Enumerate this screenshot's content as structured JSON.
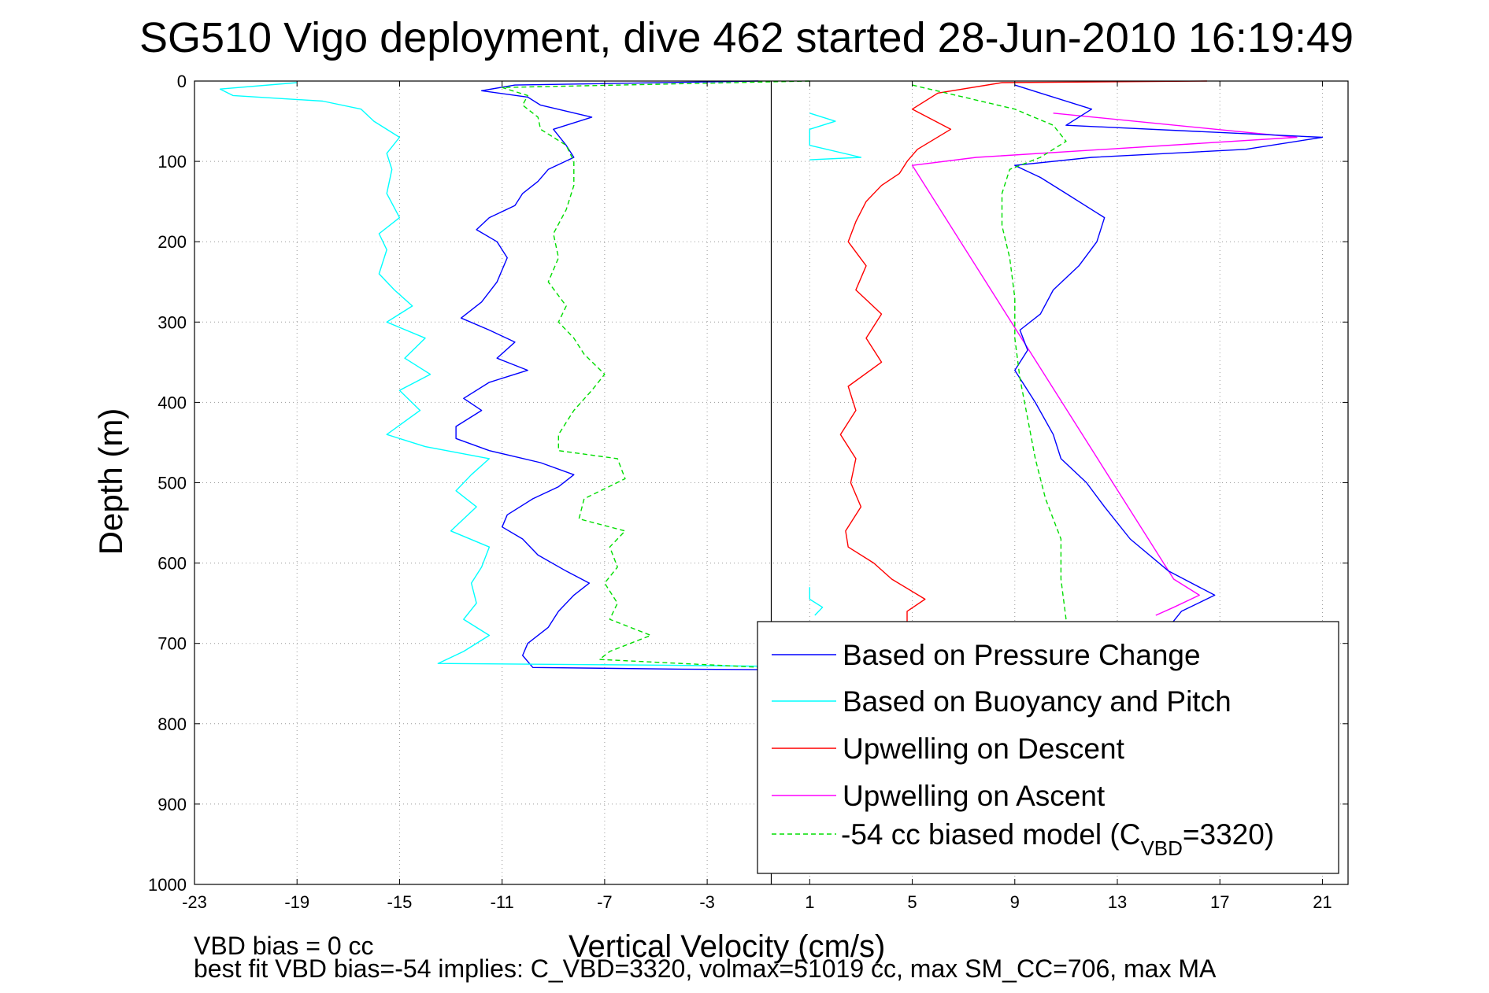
{
  "chart_data": {
    "type": "line",
    "title": "SG510 Vigo deployment, dive 462 started 28-Jun-2010 16:19:49",
    "xlabel": "Vertical Velocity (cm/s)",
    "ylabel": "Depth (m)",
    "xlim": [
      -23,
      22
    ],
    "ylim": [
      1000,
      0
    ],
    "x_ticks": [
      "-23",
      "-19",
      "-15",
      "-11",
      "-7",
      "-3",
      "1",
      "5",
      "9",
      "13",
      "17",
      "21"
    ],
    "y_ticks": [
      "0",
      "100",
      "200",
      "300",
      "400",
      "500",
      "600",
      "700",
      "800",
      "900",
      "1000"
    ],
    "grid": true,
    "legend_position": "bottom-right",
    "legend_model_text": "-54 cc biased model (C",
    "legend_model_sub": "VBD",
    "legend_model_tail": "=3320)",
    "series": [
      {
        "name": "Based on Pressure Change",
        "color": "#0000ff",
        "dash": "solid",
        "points": [
          [
            -1,
            0
          ],
          [
            -10.5,
            5
          ],
          [
            -11.8,
            12
          ],
          [
            -10,
            20
          ],
          [
            -9.5,
            30
          ],
          [
            -7.5,
            45
          ],
          [
            -9,
            60
          ],
          [
            -8.5,
            80
          ],
          [
            -8.2,
            95
          ],
          [
            -9.2,
            110
          ],
          [
            -9.6,
            125
          ],
          [
            -10.2,
            140
          ],
          [
            -10.5,
            155
          ],
          [
            -11.5,
            170
          ],
          [
            -12,
            185
          ],
          [
            -11.2,
            200
          ],
          [
            -10.8,
            220
          ],
          [
            -11.2,
            250
          ],
          [
            -11.8,
            275
          ],
          [
            -12.6,
            295
          ],
          [
            -11.5,
            310
          ],
          [
            -10.5,
            325
          ],
          [
            -11.2,
            345
          ],
          [
            -10,
            360
          ],
          [
            -11.5,
            375
          ],
          [
            -12.5,
            395
          ],
          [
            -11.8,
            410
          ],
          [
            -12.8,
            430
          ],
          [
            -12.8,
            445
          ],
          [
            -11.5,
            460
          ],
          [
            -9.5,
            475
          ],
          [
            -8.2,
            490
          ],
          [
            -8.8,
            505
          ],
          [
            -9.8,
            520
          ],
          [
            -10.8,
            540
          ],
          [
            -11,
            555
          ],
          [
            -10.2,
            570
          ],
          [
            -9.6,
            590
          ],
          [
            -8.5,
            610
          ],
          [
            -7.6,
            625
          ],
          [
            -8.2,
            640
          ],
          [
            -8.8,
            660
          ],
          [
            -9.2,
            680
          ],
          [
            -10,
            700
          ],
          [
            -10.2,
            715
          ],
          [
            -9.8,
            730
          ],
          [
            -4,
            732
          ],
          [
            1,
            733
          ]
        ]
      },
      {
        "name": "Based on Buoyancy and Pitch",
        "color": "#00ffff",
        "dash": "solid",
        "points": [
          [
            -19,
            2
          ],
          [
            -22,
            10
          ],
          [
            -21.5,
            18
          ],
          [
            -18,
            25
          ],
          [
            -16.5,
            35
          ],
          [
            -16,
            50
          ],
          [
            -15,
            70
          ],
          [
            -15.5,
            90
          ],
          [
            -15.3,
            110
          ],
          [
            -15.5,
            140
          ],
          [
            -15,
            170
          ],
          [
            -15.8,
            190
          ],
          [
            -15.5,
            210
          ],
          [
            -15.8,
            240
          ],
          [
            -15.2,
            260
          ],
          [
            -14.5,
            280
          ],
          [
            -15.5,
            300
          ],
          [
            -14,
            320
          ],
          [
            -14.8,
            345
          ],
          [
            -13.8,
            365
          ],
          [
            -15,
            385
          ],
          [
            -14.2,
            410
          ],
          [
            -15.5,
            440
          ],
          [
            -14,
            455
          ],
          [
            -11.5,
            470
          ],
          [
            -12.2,
            490
          ],
          [
            -12.8,
            510
          ],
          [
            -12,
            530
          ],
          [
            -13,
            560
          ],
          [
            -11.5,
            580
          ],
          [
            -11.8,
            605
          ],
          [
            -12.2,
            625
          ],
          [
            -12,
            650
          ],
          [
            -12.5,
            670
          ],
          [
            -11.5,
            690
          ],
          [
            -12.5,
            710
          ],
          [
            -13.5,
            725
          ],
          [
            -5,
            727
          ],
          [
            1,
            729
          ]
        ]
      },
      {
        "name": "Upwelling on Descent",
        "color": "#ff0000",
        "dash": "solid",
        "points": [
          [
            16.5,
            0
          ],
          [
            8.5,
            2
          ],
          [
            6,
            15
          ],
          [
            5,
            35
          ],
          [
            6.5,
            60
          ],
          [
            5.2,
            85
          ],
          [
            4.8,
            100
          ],
          [
            4.5,
            115
          ],
          [
            3.8,
            130
          ],
          [
            3.2,
            150
          ],
          [
            2.8,
            175
          ],
          [
            2.5,
            200
          ],
          [
            3.2,
            230
          ],
          [
            2.8,
            260
          ],
          [
            3.8,
            290
          ],
          [
            3.2,
            320
          ],
          [
            3.8,
            350
          ],
          [
            2.5,
            380
          ],
          [
            2.8,
            410
          ],
          [
            2.2,
            440
          ],
          [
            2.8,
            470
          ],
          [
            2.6,
            500
          ],
          [
            3,
            530
          ],
          [
            2.4,
            560
          ],
          [
            2.5,
            580
          ],
          [
            3.5,
            600
          ],
          [
            4.2,
            620
          ],
          [
            5.5,
            645
          ],
          [
            4.8,
            660
          ],
          [
            4.8,
            675
          ]
        ]
      },
      {
        "name": "Upwelling on Ascent",
        "color": "#ff00ff",
        "dash": "solid",
        "points": [
          [
            14.5,
            665
          ],
          [
            15.2,
            655
          ],
          [
            16.2,
            640
          ],
          [
            15.2,
            620
          ],
          [
            5,
            105
          ],
          [
            7.5,
            95
          ],
          [
            20,
            70
          ],
          [
            10.5,
            40
          ]
        ]
      },
      {
        "name": "-54 cc biased model (CVBD=3320)",
        "color": "#00dd00",
        "dash": "dashed",
        "points": [
          [
            1,
            0
          ],
          [
            -11,
            8
          ],
          [
            -10,
            18
          ],
          [
            -10.2,
            30
          ],
          [
            -9.6,
            45
          ],
          [
            -9.5,
            60
          ],
          [
            -8.5,
            80
          ],
          [
            -8.2,
            100
          ],
          [
            -8.2,
            130
          ],
          [
            -8.5,
            160
          ],
          [
            -9,
            190
          ],
          [
            -8.8,
            220
          ],
          [
            -9.2,
            250
          ],
          [
            -8.5,
            280
          ],
          [
            -8.8,
            300
          ],
          [
            -8.2,
            320
          ],
          [
            -7.8,
            340
          ],
          [
            -7,
            365
          ],
          [
            -7.5,
            385
          ],
          [
            -8.2,
            410
          ],
          [
            -8.8,
            440
          ],
          [
            -8.8,
            460
          ],
          [
            -6.5,
            470
          ],
          [
            -6.2,
            495
          ],
          [
            -7.8,
            520
          ],
          [
            -8,
            545
          ],
          [
            -6.2,
            560
          ],
          [
            -6.8,
            580
          ],
          [
            -6.5,
            605
          ],
          [
            -7,
            625
          ],
          [
            -6.5,
            650
          ],
          [
            -6.8,
            670
          ],
          [
            -5.2,
            690
          ],
          [
            -6.8,
            710
          ],
          [
            -7.2,
            720
          ],
          [
            0.5,
            732
          ]
        ]
      },
      {
        "name": "",
        "color": "#0000ff",
        "dash": "solid",
        "points": [
          [
            9,
            5
          ],
          [
            10,
            15
          ],
          [
            12,
            35
          ],
          [
            11,
            55
          ],
          [
            21,
            70
          ],
          [
            18,
            85
          ],
          [
            12,
            95
          ],
          [
            9,
            105
          ],
          [
            10,
            120
          ],
          [
            11,
            140
          ],
          [
            12.5,
            170
          ],
          [
            12.2,
            200
          ],
          [
            11.5,
            230
          ],
          [
            10.5,
            260
          ],
          [
            10,
            290
          ],
          [
            9.2,
            310
          ],
          [
            9.5,
            335
          ],
          [
            9,
            360
          ],
          [
            9.8,
            400
          ],
          [
            10.5,
            440
          ],
          [
            10.8,
            470
          ],
          [
            11.8,
            500
          ],
          [
            12.5,
            530
          ],
          [
            13.5,
            570
          ],
          [
            15,
            610
          ],
          [
            16.8,
            640
          ],
          [
            15.5,
            660
          ],
          [
            15,
            680
          ]
        ]
      },
      {
        "name": "",
        "color": "#00ffff",
        "dash": "solid",
        "points": [
          [
            1,
            40
          ],
          [
            2,
            50
          ],
          [
            1,
            60
          ],
          [
            1,
            80
          ],
          [
            3,
            95
          ],
          [
            1,
            98
          ]
        ]
      },
      {
        "name": "",
        "color": "#00ffff",
        "dash": "solid",
        "points": [
          [
            1,
            630
          ],
          [
            1,
            645
          ],
          [
            1.5,
            655
          ],
          [
            1.2,
            665
          ]
        ]
      },
      {
        "name": "",
        "color": "#00dd00",
        "dash": "dashed",
        "points": [
          [
            5,
            5
          ],
          [
            7,
            20
          ],
          [
            9,
            35
          ],
          [
            10.5,
            55
          ],
          [
            11,
            75
          ],
          [
            10,
            95
          ],
          [
            8.8,
            110
          ],
          [
            8.5,
            140
          ],
          [
            8.5,
            180
          ],
          [
            8.8,
            220
          ],
          [
            9,
            270
          ],
          [
            9,
            320
          ],
          [
            9.2,
            370
          ],
          [
            9.5,
            420
          ],
          [
            9.8,
            470
          ],
          [
            10.2,
            520
          ],
          [
            10.8,
            570
          ],
          [
            10.8,
            620
          ],
          [
            11,
            670
          ]
        ]
      }
    ]
  },
  "footer": {
    "line1": "VBD bias = 0 cc",
    "line2": "best fit VBD bias=-54 implies: C_VBD=3320, volmax=51019 cc, max SM_CC=706, max MA"
  }
}
